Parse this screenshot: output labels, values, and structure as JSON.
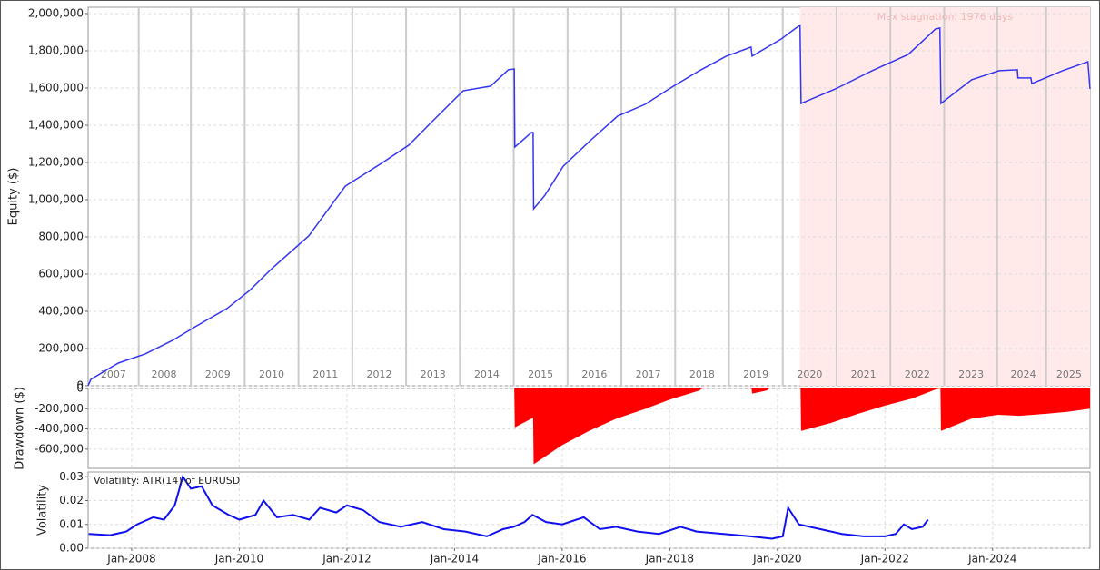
{
  "chart_data": [
    {
      "type": "line",
      "ylabel": "Equity ($)",
      "annotation": "Max stagnation: 1976 days",
      "shaded_xlim": [
        2020.42,
        2025.81
      ],
      "x": [
        2007.19,
        2007.24,
        2007.75,
        2008.25,
        2008.76,
        2009.18,
        2009.77,
        2010.19,
        2010.62,
        2011.29,
        2011.97,
        2012.64,
        2013.15,
        2013.65,
        2014.16,
        2014.67,
        2015.0,
        2015.11,
        2015.12,
        2015.43,
        2015.46,
        2015.47,
        2015.68,
        2016.02,
        2016.52,
        2017.03,
        2017.54,
        2018.04,
        2018.55,
        2019.05,
        2019.51,
        2019.53,
        2020.07,
        2020.32,
        2020.42,
        2020.44,
        2021.08,
        2021.76,
        2022.43,
        2022.94,
        2023.02,
        2023.04,
        2023.61,
        2024.12,
        2024.46,
        2024.47,
        2024.71,
        2024.73,
        2025.3,
        2025.77,
        2025.81
      ],
      "series": [
        {
          "name": "Equity",
          "color": "#3535f0",
          "values": [
            0,
            34000,
            122000,
            171000,
            244000,
            317000,
            415000,
            512000,
            634000,
            805000,
            1073000,
            1195000,
            1293000,
            1439000,
            1585000,
            1610000,
            1698000,
            1702000,
            1283000,
            1361000,
            1361000,
            951000,
            1024000,
            1180000,
            1317000,
            1449000,
            1512000,
            1605000,
            1693000,
            1771000,
            1820000,
            1771000,
            1863000,
            1917000,
            1937000,
            1517000,
            1595000,
            1693000,
            1780000,
            1917000,
            1922000,
            1517000,
            1644000,
            1693000,
            1698000,
            1654000,
            1654000,
            1624000,
            1693000,
            1741000,
            1595000
          ]
        }
      ],
      "xlim": [
        2007.19,
        2025.81
      ],
      "ylim": [
        0,
        2034000
      ],
      "xticks": [
        {
          "value": 2007.66,
          "label": "2007"
        },
        {
          "value": 2008.6,
          "label": "2008"
        },
        {
          "value": 2009.6,
          "label": "2009"
        },
        {
          "value": 2010.6,
          "label": "2010"
        },
        {
          "value": 2011.6,
          "label": "2011"
        },
        {
          "value": 2012.6,
          "label": "2012"
        },
        {
          "value": 2013.6,
          "label": "2013"
        },
        {
          "value": 2014.6,
          "label": "2014"
        },
        {
          "value": 2015.6,
          "label": "2015"
        },
        {
          "value": 2016.6,
          "label": "2016"
        },
        {
          "value": 2017.6,
          "label": "2017"
        },
        {
          "value": 2018.6,
          "label": "2018"
        },
        {
          "value": 2019.6,
          "label": "2019"
        },
        {
          "value": 2020.6,
          "label": "2020"
        },
        {
          "value": 2021.6,
          "label": "2021"
        },
        {
          "value": 2022.6,
          "label": "2022"
        },
        {
          "value": 2023.6,
          "label": "2023"
        },
        {
          "value": 2024.57,
          "label": "2024"
        },
        {
          "value": 2025.42,
          "label": "2025"
        }
      ],
      "yticks": [
        0,
        {
          "value": 200000,
          "label": "200,000"
        },
        {
          "value": 400000,
          "label": "400,000"
        },
        {
          "value": 600000,
          "label": "600,000"
        },
        {
          "value": 800000,
          "label": "800,000"
        },
        {
          "value": 1000000,
          "label": "1,000,000"
        },
        {
          "value": 1200000,
          "label": "1,200,000"
        },
        {
          "value": 1400000,
          "label": "1,400,000"
        },
        {
          "value": 1600000,
          "label": "1,600,000"
        },
        {
          "value": 1800000,
          "label": "1,800,000"
        },
        {
          "value": 2000000,
          "label": "2,000,000"
        }
      ],
      "grid": true
    },
    {
      "type": "area",
      "ylabel": "Drawdown ($)",
      "x": [
        2007.19,
        2015.11,
        2015.12,
        2015.46,
        2015.47,
        2016.0,
        2016.5,
        2017.0,
        2017.5,
        2018.0,
        2018.55,
        2018.6,
        2019.52,
        2019.53,
        2019.8,
        2019.85,
        2020.43,
        2020.44,
        2021.0,
        2021.5,
        2022.0,
        2022.5,
        2022.94,
        2023.03,
        2023.04,
        2023.6,
        2024.1,
        2024.5,
        2025.0,
        2025.4,
        2025.81
      ],
      "series": [
        {
          "name": "Drawdown",
          "color": "#ff0000",
          "values": [
            0,
            0,
            -385000,
            -290000,
            -750000,
            -560000,
            -420000,
            -300000,
            -210000,
            -110000,
            -20000,
            0,
            0,
            -50000,
            -20000,
            0,
            0,
            -420000,
            -340000,
            -250000,
            -170000,
            -100000,
            -10000,
            0,
            -420000,
            -300000,
            -260000,
            -270000,
            -250000,
            -230000,
            -200000
          ]
        }
      ],
      "xlim": [
        2007.19,
        2025.81
      ],
      "ylim": [
        -790000,
        0
      ],
      "yticks": [
        0,
        {
          "value": -200000,
          "label": "-200,000"
        },
        {
          "value": -400000,
          "label": "-400,000"
        },
        {
          "value": -600000,
          "label": "-600,000"
        }
      ],
      "grid": true
    },
    {
      "type": "line",
      "ylabel": "Volatility",
      "x": [
        2007.2,
        2007.6,
        2007.9,
        2008.1,
        2008.4,
        2008.6,
        2008.8,
        2008.95,
        2009.1,
        2009.3,
        2009.5,
        2009.8,
        2010.0,
        2010.3,
        2010.45,
        2010.7,
        2011.0,
        2011.3,
        2011.5,
        2011.8,
        2012.0,
        2012.3,
        2012.6,
        2013.0,
        2013.4,
        2013.8,
        2014.2,
        2014.6,
        2014.9,
        2015.1,
        2015.3,
        2015.45,
        2015.7,
        2016.0,
        2016.4,
        2016.7,
        2017.0,
        2017.4,
        2017.8,
        2018.2,
        2018.5,
        2019.0,
        2019.5,
        2019.9,
        2020.1,
        2020.2,
        2020.4,
        2020.8,
        2021.2,
        2021.6,
        2022.0,
        2022.2,
        2022.35,
        2022.5,
        2022.7,
        2022.8
      ],
      "series": [
        {
          "name": "Volatility: ATR(14) of EURUSD",
          "color": "#1010ee",
          "values": [
            0.006,
            0.0055,
            0.007,
            0.01,
            0.013,
            0.012,
            0.018,
            0.03,
            0.025,
            0.026,
            0.018,
            0.014,
            0.012,
            0.014,
            0.02,
            0.013,
            0.014,
            0.012,
            0.017,
            0.015,
            0.018,
            0.016,
            0.011,
            0.009,
            0.011,
            0.008,
            0.007,
            0.005,
            0.008,
            0.009,
            0.011,
            0.014,
            0.011,
            0.01,
            0.013,
            0.008,
            0.009,
            0.007,
            0.006,
            0.009,
            0.007,
            0.006,
            0.005,
            0.004,
            0.005,
            0.017,
            0.01,
            0.008,
            0.006,
            0.005,
            0.005,
            0.006,
            0.01,
            0.008,
            0.009,
            0.012
          ]
        }
      ],
      "xlim": [
        2007.19,
        2025.81
      ],
      "ylim": [
        0,
        0.032
      ],
      "xticks": [
        {
          "value": 2008,
          "label": "Jan-2008"
        },
        {
          "value": 2010,
          "label": "Jan-2010"
        },
        {
          "value": 2012,
          "label": "Jan-2012"
        },
        {
          "value": 2014,
          "label": "Jan-2014"
        },
        {
          "value": 2016,
          "label": "Jan-2016"
        },
        {
          "value": 2018,
          "label": "Jan-2018"
        },
        {
          "value": 2020,
          "label": "Jan-2020"
        },
        {
          "value": 2022,
          "label": "Jan-2022"
        },
        {
          "value": 2024,
          "label": "Jan-2024"
        }
      ],
      "yticks": [
        {
          "value": 0,
          "label": "0.00"
        },
        0.01,
        0.02,
        0.03
      ],
      "grid": true
    }
  ]
}
